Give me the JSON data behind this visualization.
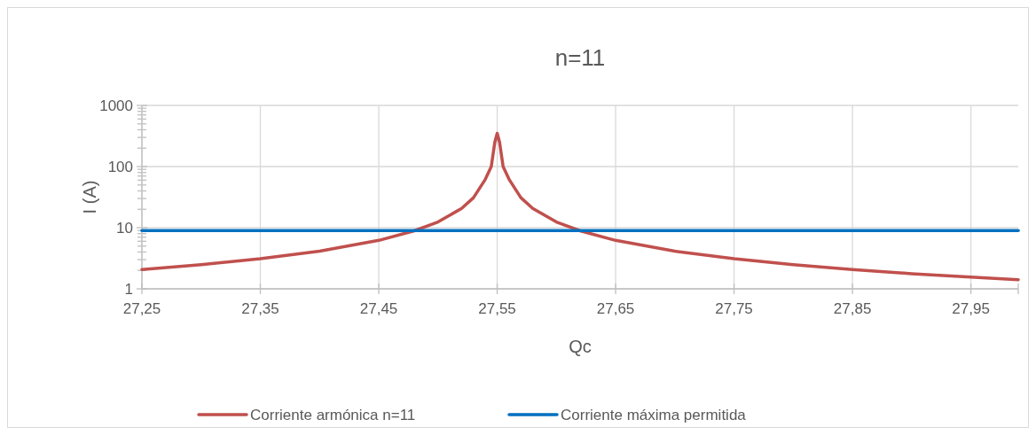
{
  "chart_data": {
    "type": "line",
    "title": "n=11",
    "xlabel": "Qc",
    "ylabel": "I (A)",
    "log": "y",
    "grid": true,
    "legend": "bottom",
    "xlim": [
      27.25,
      27.99
    ],
    "xticks": [
      {
        "value": 27.25,
        "label": "27,25"
      },
      {
        "value": 27.35,
        "label": "27,35"
      },
      {
        "value": 27.45,
        "label": "27,45"
      },
      {
        "value": 27.55,
        "label": "27,55"
      },
      {
        "value": 27.65,
        "label": "27,65"
      },
      {
        "value": 27.75,
        "label": "27,75"
      },
      {
        "value": 27.85,
        "label": "27,85"
      },
      {
        "value": 27.95,
        "label": "27,95"
      }
    ],
    "ylim": [
      1,
      1000
    ],
    "yticks": [
      1,
      {
        "value": 2,
        "label": null
      },
      {
        "value": 3,
        "label": null
      },
      {
        "value": 4,
        "label": null
      },
      {
        "value": 5,
        "label": null
      },
      {
        "value": 6,
        "label": null
      },
      {
        "value": 7,
        "label": null
      },
      {
        "value": 8,
        "label": null
      },
      {
        "value": 9,
        "label": null
      },
      10,
      {
        "value": 20,
        "label": null
      },
      {
        "value": 30,
        "label": null
      },
      {
        "value": 40,
        "label": null
      },
      {
        "value": 50,
        "label": null
      },
      {
        "value": 60,
        "label": null
      },
      {
        "value": 70,
        "label": null
      },
      {
        "value": 80,
        "label": null
      },
      {
        "value": 90,
        "label": null
      },
      100,
      {
        "value": 200,
        "label": null
      },
      {
        "value": 300,
        "label": null
      },
      {
        "value": 400,
        "label": null
      },
      {
        "value": 500,
        "label": null
      },
      {
        "value": 600,
        "label": null
      },
      {
        "value": 700,
        "label": null
      },
      {
        "value": 800,
        "label": null
      },
      {
        "value": 900,
        "label": null
      },
      1000
    ],
    "marker": "none",
    "line_style": "solid",
    "series": [
      {
        "name": "Corriente armónica n=11",
        "color": "#c0504d",
        "x": [
          27.25,
          27.3,
          27.35,
          27.4,
          27.45,
          27.48,
          27.5,
          27.52,
          27.53,
          27.54,
          27.545,
          27.548,
          27.55,
          27.552,
          27.555,
          27.56,
          27.57,
          27.58,
          27.6,
          27.62,
          27.65,
          27.7,
          27.75,
          27.8,
          27.85,
          27.9,
          27.95,
          27.99
        ],
        "values": [
          2.07,
          2.48,
          3.1,
          4.13,
          6.2,
          8.9,
          12.4,
          20.7,
          31,
          62,
          100,
          250,
          350,
          250,
          100,
          62,
          31,
          20.7,
          12.4,
          8.9,
          6.2,
          4.13,
          3.1,
          2.48,
          2.07,
          1.77,
          1.55,
          1.41
        ]
      },
      {
        "name": "Corriente máxima permitida",
        "color": "#0070c0",
        "x": [
          27.25,
          27.99
        ],
        "values": [
          9,
          9
        ]
      }
    ]
  }
}
